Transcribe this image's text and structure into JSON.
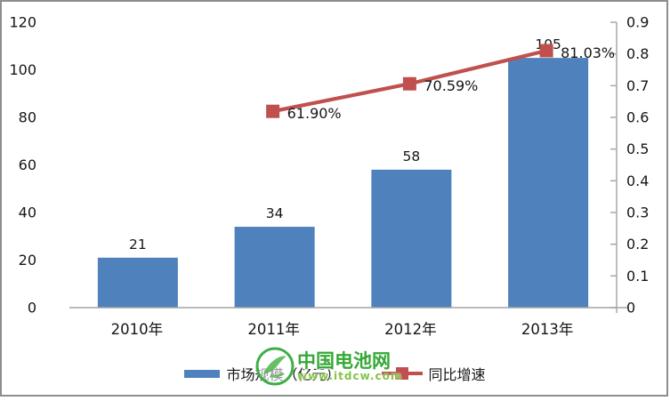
{
  "chart_data": {
    "type": "bar",
    "subtype": "bar-line-combo",
    "title": "",
    "categories": [
      "2010年",
      "2011年",
      "2012年",
      "2013年"
    ],
    "series": [
      {
        "name": "市场规模（亿元）",
        "type": "bar",
        "axis": "left",
        "color": "#4f81bd",
        "values": [
          21,
          34,
          58,
          105
        ],
        "labels": [
          "21",
          "34",
          "58",
          "105"
        ]
      },
      {
        "name": "同比增速",
        "type": "line",
        "axis": "right",
        "color": "#c0504d",
        "values": [
          null,
          0.619,
          0.7059,
          0.8103
        ],
        "labels": [
          null,
          "61.90%",
          "70.59%",
          "81.03%"
        ]
      }
    ],
    "left_axis": {
      "min": 0,
      "max": 120,
      "step": 20,
      "ticks": [
        "0",
        "20",
        "40",
        "60",
        "80",
        "100",
        "120"
      ]
    },
    "right_axis": {
      "min": 0,
      "max": 0.9,
      "step": 0.1,
      "ticks": [
        "0",
        "0.1",
        "0.2",
        "0.3",
        "0.4",
        "0.5",
        "0.6",
        "0.7",
        "0.8",
        "0.9"
      ]
    },
    "grid": false,
    "legend_position": "bottom",
    "axis_line_color": "#a3a3a3"
  },
  "watermark": {
    "title": "中国电池网",
    "url": "www.itdcw.com",
    "color": "#35a836"
  }
}
